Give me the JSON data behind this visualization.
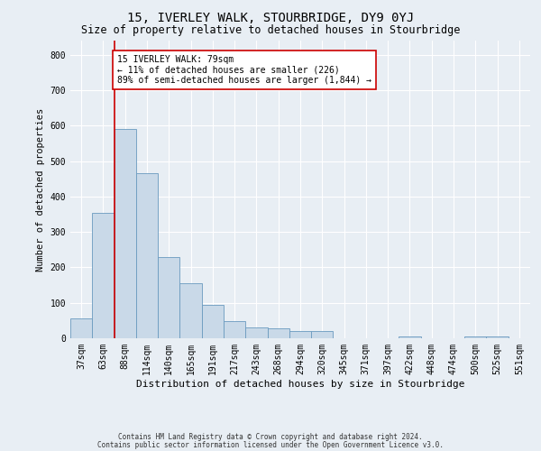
{
  "title": "15, IVERLEY WALK, STOURBRIDGE, DY9 0YJ",
  "subtitle": "Size of property relative to detached houses in Stourbridge",
  "xlabel": "Distribution of detached houses by size in Stourbridge",
  "ylabel": "Number of detached properties",
  "footnote1": "Contains HM Land Registry data © Crown copyright and database right 2024.",
  "footnote2": "Contains public sector information licensed under the Open Government Licence v3.0.",
  "bar_labels": [
    "37sqm",
    "63sqm",
    "88sqm",
    "114sqm",
    "140sqm",
    "165sqm",
    "191sqm",
    "217sqm",
    "243sqm",
    "268sqm",
    "294sqm",
    "320sqm",
    "345sqm",
    "371sqm",
    "397sqm",
    "422sqm",
    "448sqm",
    "474sqm",
    "500sqm",
    "525sqm",
    "551sqm"
  ],
  "bar_values": [
    55,
    355,
    590,
    465,
    230,
    155,
    93,
    48,
    30,
    28,
    20,
    20,
    0,
    0,
    0,
    5,
    0,
    0,
    5,
    5,
    0
  ],
  "bar_color": "#c9d9e8",
  "bar_edgecolor": "#6a9abf",
  "vline_color": "#cc0000",
  "annotation_text": "15 IVERLEY WALK: 79sqm\n← 11% of detached houses are smaller (226)\n89% of semi-detached houses are larger (1,844) →",
  "annotation_box_color": "#ffffff",
  "annotation_box_edgecolor": "#cc0000",
  "ylim": [
    0,
    840
  ],
  "yticks": [
    0,
    100,
    200,
    300,
    400,
    500,
    600,
    700,
    800
  ],
  "bg_color": "#e8eef4",
  "plot_bg_color": "#e8eef4",
  "title_fontsize": 10,
  "subtitle_fontsize": 8.5,
  "ylabel_fontsize": 7.5,
  "xlabel_fontsize": 8,
  "tick_fontsize": 7,
  "annotation_fontsize": 7,
  "footnote_fontsize": 5.5
}
